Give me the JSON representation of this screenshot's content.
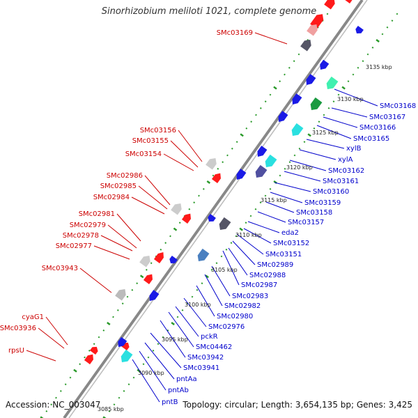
{
  "title": "Sinorhizobium meliloti 1021, complete genome",
  "footer": {
    "accession": "Accession: NC_003047",
    "summary": "Topology: circular; Length: 3,654,135 bp; Genes: 3,425"
  },
  "colors": {
    "forward_gene": "#ff1a1a",
    "reverse_gene": "#1a1ae6",
    "forward_label": "#cc0000",
    "reverse_label": "#0000cc",
    "backbone": "#888888",
    "tick_dots": "#2a9a2a"
  },
  "ticks": [
    "3085 kbp",
    "3090 kbp",
    "3095 kbp",
    "3100 kbp",
    "3105 kbp",
    "3110 kbp",
    "3115 kbp",
    "3120 kbp",
    "3125 kbp",
    "3130 kbp",
    "3135 kbp"
  ],
  "left_labels": [
    "SMc03169",
    "SMc03156",
    "SMc03155",
    "SMc03154",
    "SMc02986",
    "SMc02985",
    "SMc02984",
    "SMc02981",
    "SMc02979",
    "SMc02978",
    "SMc02977",
    "SMc03943",
    "cyaG1",
    "SMc03936",
    "rpsU"
  ],
  "right_labels": [
    "SMc03168",
    "SMc03167",
    "SMc03166",
    "SMc03165",
    "xylB",
    "xylA",
    "SMc03162",
    "SMc03161",
    "SMc03160",
    "SMc03159",
    "SMc03158",
    "SMc03157",
    "eda2",
    "SMc03152",
    "SMc03151",
    "SMc02989",
    "SMc02988",
    "SMc02987",
    "SMc02983",
    "SMc02982",
    "SMc02980",
    "SMc02976",
    "pckR",
    "SMc04462",
    "SMc03942",
    "SMc03941",
    "pntAa",
    "pntAb",
    "pntB"
  ]
}
